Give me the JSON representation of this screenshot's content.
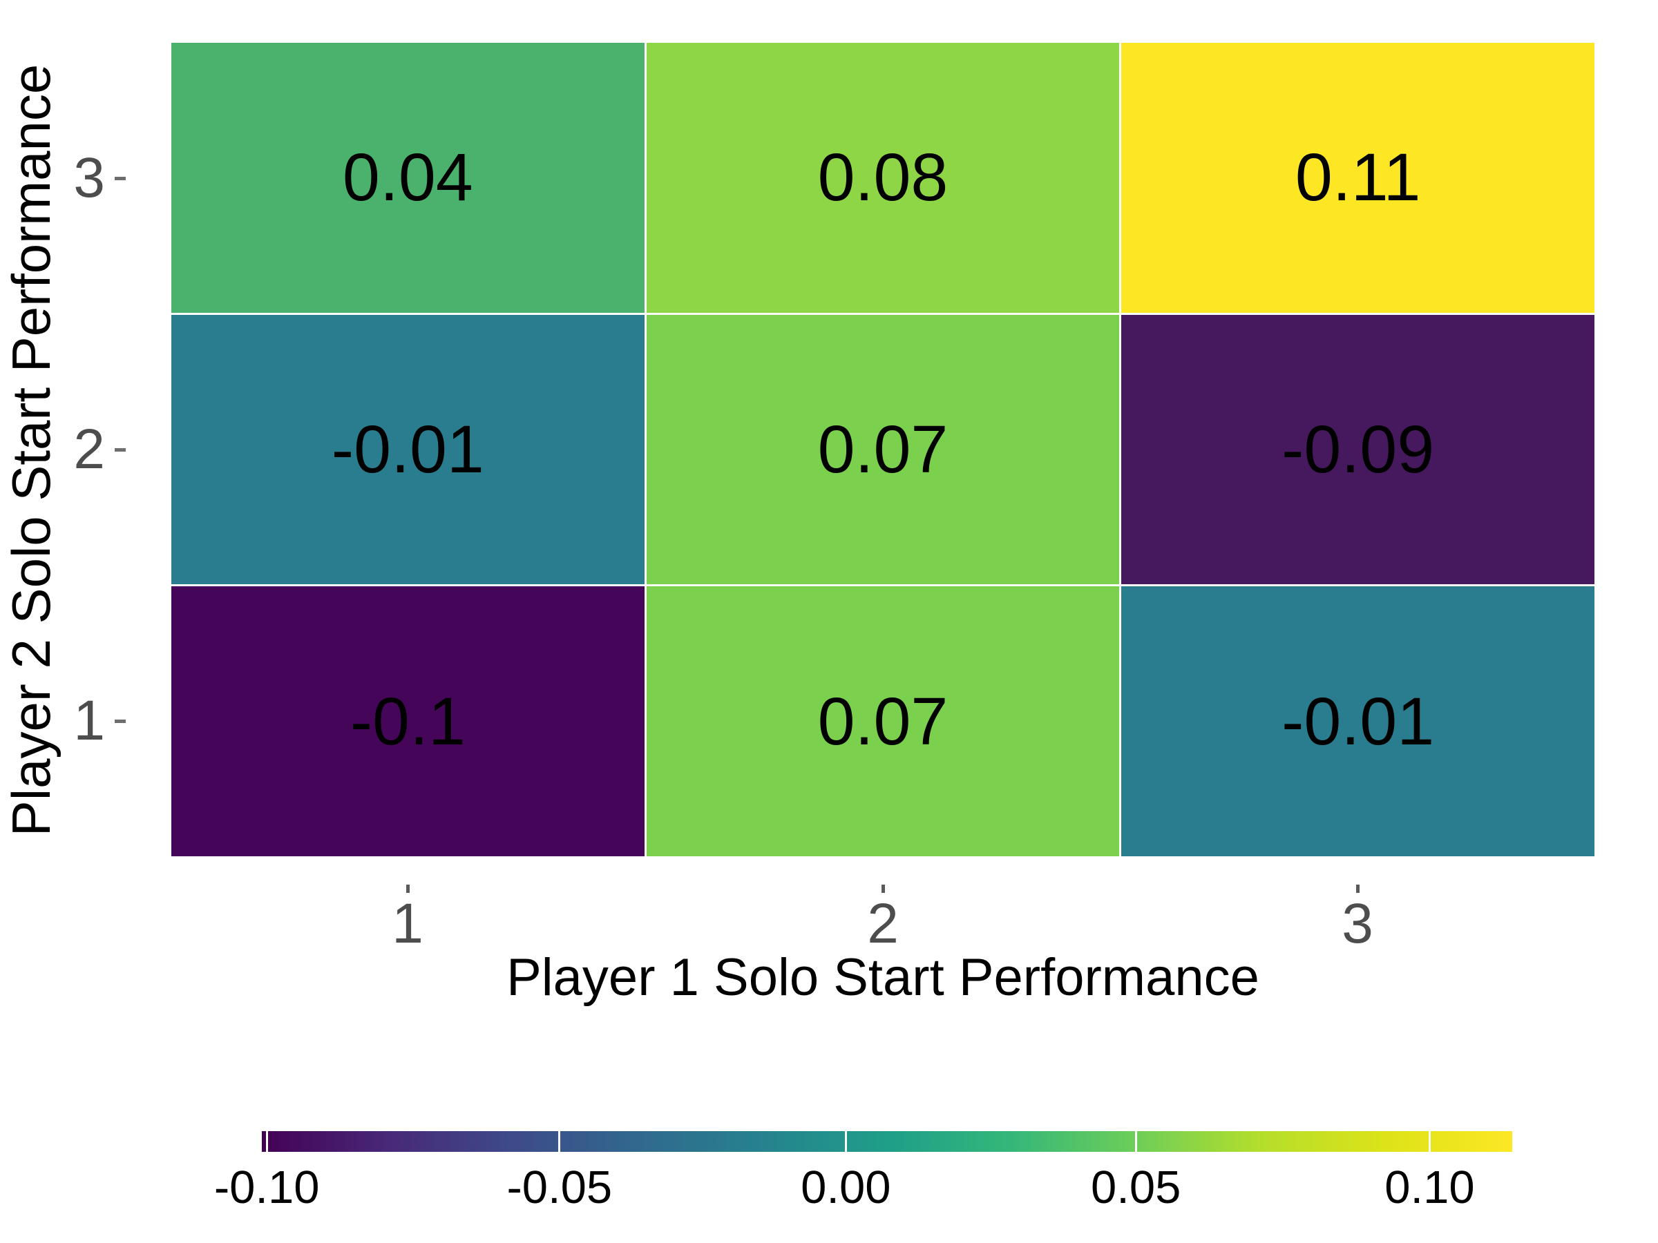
{
  "chart_data": {
    "type": "heatmap",
    "title": "",
    "xlabel": "Player 1 Solo Start Performance",
    "ylabel": "Player 2 Solo Start Performance",
    "x_categories": [
      "1",
      "2",
      "3"
    ],
    "y_categories": [
      "1",
      "2",
      "3"
    ],
    "grid": false,
    "legend_position": "bottom",
    "cells": [
      {
        "x": 1,
        "y": 3,
        "value": 0.04,
        "label": "0.04",
        "color": "#4bb26d"
      },
      {
        "x": 2,
        "y": 3,
        "value": 0.08,
        "label": "0.08",
        "color": "#8ed645"
      },
      {
        "x": 3,
        "y": 3,
        "value": 0.11,
        "label": "0.11",
        "color": "#fde725"
      },
      {
        "x": 1,
        "y": 2,
        "value": -0.01,
        "label": "-0.01",
        "color": "#2a7d8e"
      },
      {
        "x": 2,
        "y": 2,
        "value": 0.07,
        "label": "0.07",
        "color": "#7bd04e"
      },
      {
        "x": 3,
        "y": 2,
        "value": -0.09,
        "label": "-0.09",
        "color": "#46195f"
      },
      {
        "x": 1,
        "y": 1,
        "value": -0.1,
        "label": "-0.1",
        "color": "#45065a"
      },
      {
        "x": 2,
        "y": 1,
        "value": 0.07,
        "label": "0.07",
        "color": "#7bd04e"
      },
      {
        "x": 3,
        "y": 1,
        "value": -0.01,
        "label": "-0.01",
        "color": "#2a7d8e"
      }
    ],
    "colorbar": {
      "min": -0.1,
      "max": 0.11,
      "palette": "viridis",
      "gradient": [
        "#440154",
        "#482878",
        "#3e4a89",
        "#31688e",
        "#26828e",
        "#1f9e89",
        "#35b779",
        "#6ece58",
        "#b5de2b",
        "#dde318",
        "#fde725"
      ],
      "ticks": [
        {
          "value": -0.1,
          "label": "-0.10",
          "pos": 0.004
        },
        {
          "value": -0.05,
          "label": "-0.05",
          "pos": 0.238
        },
        {
          "value": 0.0,
          "label": "0.00",
          "pos": 0.467
        },
        {
          "value": 0.05,
          "label": "0.05",
          "pos": 0.699
        },
        {
          "value": 0.1,
          "label": "0.10",
          "pos": 0.934
        }
      ]
    },
    "text_color_axis": "#4d4d4d",
    "text_color_labels": "#000000"
  }
}
